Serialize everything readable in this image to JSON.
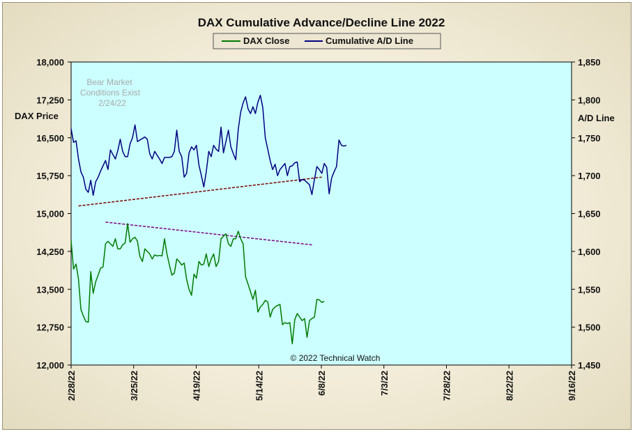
{
  "chart_data": {
    "type": "line",
    "title": "DAX Cumulative  Advance/Decline  Line  2022",
    "left_axis": {
      "label": "DAX Price",
      "range": [
        12000,
        18000
      ],
      "ticks": [
        "18,000",
        "17,250",
        "16,500",
        "15,750",
        "15,000",
        "14,250",
        "13,500",
        "12,750",
        "12,000"
      ]
    },
    "right_axis": {
      "label": "A/D Line",
      "range": [
        1450,
        1850
      ],
      "ticks": [
        "1,850",
        "1,800",
        "1,750",
        "1,700",
        "1,650",
        "1,600",
        "1,550",
        "1,500",
        "1,450"
      ]
    },
    "x_ticks": [
      "2/28/22",
      "3/25/22",
      "4/19/22",
      "5/14/22",
      "6/8/22",
      "7/3/22",
      "7/28/22",
      "8/22/22",
      "9/16/22"
    ],
    "legend": {
      "placement": "top-center",
      "entries": [
        "DAX Close",
        "Cumulative A/D Line"
      ]
    },
    "annotation": [
      "Bear Market",
      "Conditions  Exist",
      "2/24/22"
    ],
    "copyright": "© 2022 Technical  Watch",
    "colors": {
      "dax": "#007a00",
      "ad": "#000080",
      "trend_ad": "#800000",
      "trend_dax": "#800080",
      "plot_bg": "#ccffff"
    },
    "series": [
      {
        "name": "DAX Close",
        "axis": "left",
        "points": [
          [
            0,
            14460
          ],
          [
            1,
            13900
          ],
          [
            2,
            14000
          ],
          [
            3,
            13700
          ],
          [
            4,
            13100
          ],
          [
            5,
            12970
          ],
          [
            6,
            12860
          ],
          [
            7,
            12850
          ],
          [
            8,
            13850
          ],
          [
            9,
            13420
          ],
          [
            10,
            13650
          ],
          [
            11,
            13780
          ],
          [
            12,
            13920
          ],
          [
            13,
            13940
          ],
          [
            14,
            14400
          ],
          [
            15,
            14450
          ],
          [
            16,
            14400
          ],
          [
            17,
            14350
          ],
          [
            18,
            14500
          ],
          [
            19,
            14300
          ],
          [
            20,
            14300
          ],
          [
            21,
            14380
          ],
          [
            22,
            14420
          ],
          [
            23,
            14800
          ],
          [
            24,
            14430
          ],
          [
            25,
            14500
          ],
          [
            26,
            14530
          ],
          [
            27,
            14450
          ],
          [
            28,
            14150
          ],
          [
            29,
            14050
          ],
          [
            30,
            14300
          ],
          [
            31,
            14250
          ],
          [
            32,
            14200
          ],
          [
            33,
            14100
          ],
          [
            34,
            14180
          ],
          [
            35,
            14160
          ],
          [
            36,
            14170
          ],
          [
            37,
            14160
          ],
          [
            38,
            14500
          ],
          [
            39,
            14200
          ],
          [
            40,
            13980
          ],
          [
            41,
            13780
          ],
          [
            42,
            13820
          ],
          [
            43,
            14100
          ],
          [
            44,
            14050
          ],
          [
            45,
            13980
          ],
          [
            46,
            14020
          ],
          [
            47,
            13700
          ],
          [
            48,
            13500
          ],
          [
            49,
            13380
          ],
          [
            50,
            13800
          ],
          [
            51,
            13720
          ],
          [
            52,
            14050
          ],
          [
            53,
            13980
          ],
          [
            54,
            14000
          ],
          [
            55,
            14200
          ],
          [
            56,
            13950
          ],
          [
            57,
            14100
          ],
          [
            58,
            14200
          ],
          [
            59,
            13950
          ],
          [
            60,
            14050
          ],
          [
            61,
            14500
          ],
          [
            62,
            14550
          ],
          [
            63,
            14600
          ],
          [
            64,
            14400
          ],
          [
            65,
            14350
          ],
          [
            66,
            14500
          ],
          [
            67,
            14500
          ],
          [
            68,
            14650
          ],
          [
            69,
            14500
          ],
          [
            70,
            14400
          ],
          [
            71,
            13750
          ],
          [
            72,
            13600
          ],
          [
            73,
            13450
          ],
          [
            74,
            13300
          ],
          [
            75,
            13480
          ],
          [
            76,
            13050
          ],
          [
            77,
            13150
          ],
          [
            78,
            13200
          ],
          [
            79,
            13280
          ],
          [
            80,
            13250
          ],
          [
            81,
            12950
          ],
          [
            82,
            13100
          ],
          [
            83,
            13150
          ],
          [
            84,
            13180
          ],
          [
            85,
            13200
          ],
          [
            86,
            12800
          ],
          [
            87,
            12840
          ],
          [
            88,
            12820
          ],
          [
            89,
            12840
          ],
          [
            90,
            12420
          ],
          [
            91,
            12900
          ],
          [
            92,
            13020
          ],
          [
            93,
            12950
          ],
          [
            94,
            12880
          ],
          [
            95,
            12920
          ],
          [
            96,
            12550
          ],
          [
            97,
            12880
          ],
          [
            98,
            12920
          ],
          [
            99,
            12950
          ],
          [
            100,
            13300
          ],
          [
            101,
            13290
          ],
          [
            102,
            13240
          ],
          [
            103,
            13260
          ]
        ]
      },
      {
        "name": "Cumulative A/D Line",
        "axis": "right",
        "points": [
          [
            0,
            1762
          ],
          [
            1,
            1744
          ],
          [
            2,
            1746
          ],
          [
            3,
            1722
          ],
          [
            4,
            1705
          ],
          [
            5,
            1698
          ],
          [
            6,
            1682
          ],
          [
            7,
            1678
          ],
          [
            8,
            1694
          ],
          [
            9,
            1674
          ],
          [
            10,
            1692
          ],
          [
            11,
            1698
          ],
          [
            12,
            1706
          ],
          [
            13,
            1713
          ],
          [
            14,
            1720
          ],
          [
            15,
            1708
          ],
          [
            16,
            1734
          ],
          [
            17,
            1728
          ],
          [
            18,
            1722
          ],
          [
            19,
            1733
          ],
          [
            20,
            1748
          ],
          [
            21,
            1732
          ],
          [
            22,
            1725
          ],
          [
            23,
            1725
          ],
          [
            24,
            1742
          ],
          [
            25,
            1750
          ],
          [
            26,
            1767
          ],
          [
            27,
            1745
          ],
          [
            28,
            1747
          ],
          [
            29,
            1749
          ],
          [
            30,
            1751
          ],
          [
            31,
            1748
          ],
          [
            32,
            1729
          ],
          [
            33,
            1722
          ],
          [
            34,
            1732
          ],
          [
            35,
            1727
          ],
          [
            36,
            1722
          ],
          [
            37,
            1716
          ],
          [
            38,
            1724
          ],
          [
            39,
            1724
          ],
          [
            40,
            1724
          ],
          [
            41,
            1725
          ],
          [
            42,
            1732
          ],
          [
            43,
            1760
          ],
          [
            44,
            1732
          ],
          [
            45,
            1725
          ],
          [
            46,
            1698
          ],
          [
            47,
            1703
          ],
          [
            48,
            1730
          ],
          [
            49,
            1738
          ],
          [
            50,
            1734
          ],
          [
            51,
            1740
          ],
          [
            52,
            1714
          ],
          [
            53,
            1700
          ],
          [
            54,
            1685
          ],
          [
            55,
            1705
          ],
          [
            56,
            1732
          ],
          [
            57,
            1725
          ],
          [
            58,
            1740
          ],
          [
            59,
            1735
          ],
          [
            60,
            1732
          ],
          [
            61,
            1764
          ],
          [
            62,
            1730
          ],
          [
            63,
            1745
          ],
          [
            64,
            1760
          ],
          [
            65,
            1738
          ],
          [
            66,
            1729
          ],
          [
            67,
            1721
          ],
          [
            68,
            1761
          ],
          [
            69,
            1784
          ],
          [
            70,
            1796
          ],
          [
            71,
            1804
          ],
          [
            72,
            1788
          ],
          [
            73,
            1782
          ],
          [
            74,
            1791
          ],
          [
            75,
            1782
          ],
          [
            76,
            1797
          ],
          [
            77,
            1806
          ],
          [
            78,
            1790
          ],
          [
            79,
            1750
          ],
          [
            80,
            1735
          ],
          [
            81,
            1720
          ],
          [
            82,
            1708
          ],
          [
            83,
            1715
          ],
          [
            84,
            1700
          ],
          [
            85,
            1708
          ],
          [
            86,
            1712
          ],
          [
            87,
            1716
          ],
          [
            88,
            1700
          ],
          [
            89,
            1712
          ],
          [
            90,
            1713
          ],
          [
            91,
            1717
          ],
          [
            92,
            1718
          ],
          [
            93,
            1692
          ],
          [
            94,
            1695
          ],
          [
            95,
            1694
          ],
          [
            96,
            1691
          ],
          [
            97,
            1688
          ],
          [
            98,
            1675
          ],
          [
            99,
            1695
          ],
          [
            100,
            1712
          ],
          [
            101,
            1708
          ],
          [
            102,
            1703
          ],
          [
            103,
            1716
          ],
          [
            104,
            1711
          ],
          [
            105,
            1676
          ],
          [
            106,
            1697
          ],
          [
            107,
            1705
          ],
          [
            108,
            1712
          ],
          [
            109,
            1747
          ],
          [
            110,
            1740
          ],
          [
            111,
            1739
          ],
          [
            112,
            1740
          ]
        ]
      }
    ],
    "trendlines": [
      {
        "axis": "right",
        "from": [
          3,
          1660
        ],
        "to": [
          102,
          1698
        ]
      },
      {
        "axis": "left",
        "from": [
          14,
          14830
        ],
        "to": [
          98,
          14380
        ]
      }
    ]
  }
}
